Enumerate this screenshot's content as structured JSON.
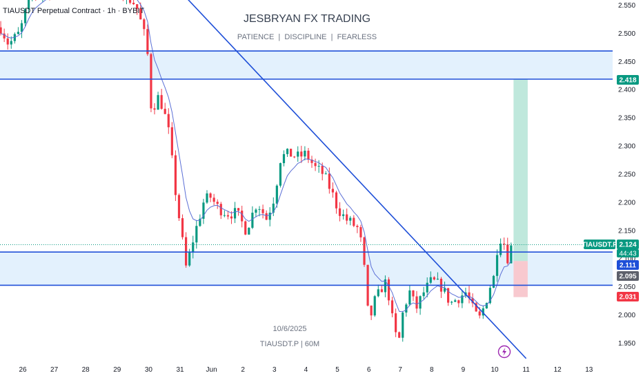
{
  "header": {
    "symbol_title": "TIAUSDT Perpetual Contract · 1h · BYBIT",
    "watermark_title": "JESBRYAN FX TRADING",
    "watermark_tagline": "PATIENCE  |  DISCIPLINE  |  FEARLESS",
    "footer_date": "10/6/2025",
    "footer_symbol": "TIAUSDT.P | 60M"
  },
  "colors": {
    "up": "#089981",
    "down": "#f23645",
    "ma": "#5b6fd6",
    "level_line": "#1e4fd8",
    "zone_fill": "#e3f1fd",
    "target_fill": "#bfe8dc",
    "stop_fill": "#f8c9cf",
    "dotted": "#089981"
  },
  "chart_data": {
    "type": "candlestick",
    "title": "TIAUSDT Perpetual Contract · 1h · BYBIT",
    "ylim": [
      1.92,
      2.56
    ],
    "y_ticks": [
      "2.550",
      "2.500",
      "2.450",
      "2.400",
      "2.350",
      "2.300",
      "2.250",
      "2.200",
      "2.150",
      "2.100",
      "2.050",
      "2.000",
      "1.950"
    ],
    "x_ticks": [
      {
        "label": "26",
        "day": 0
      },
      {
        "label": "27",
        "day": 1
      },
      {
        "label": "28",
        "day": 2
      },
      {
        "label": "29",
        "day": 3
      },
      {
        "label": "30",
        "day": 4
      },
      {
        "label": "31",
        "day": 5
      },
      {
        "label": "Jun",
        "day": 6
      },
      {
        "label": "2",
        "day": 7
      },
      {
        "label": "3",
        "day": 8
      },
      {
        "label": "4",
        "day": 9
      },
      {
        "label": "5",
        "day": 10
      },
      {
        "label": "6",
        "day": 11
      },
      {
        "label": "7",
        "day": 12
      },
      {
        "label": "8",
        "day": 13
      },
      {
        "label": "9",
        "day": 14
      },
      {
        "label": "10",
        "day": 15
      },
      {
        "label": "11",
        "day": 16
      },
      {
        "label": "12",
        "day": 17
      },
      {
        "label": "13",
        "day": 18
      }
    ],
    "path": [
      [
        -0.7,
        2.51
      ],
      [
        -0.45,
        2.48
      ],
      [
        -0.1,
        2.5
      ],
      [
        0.25,
        2.57
      ],
      [
        0.6,
        2.57
      ],
      [
        1.2,
        2.58
      ],
      [
        2.0,
        2.58
      ],
      [
        2.6,
        2.59
      ],
      [
        3.2,
        2.57
      ],
      [
        3.6,
        2.55
      ],
      [
        3.85,
        2.5
      ],
      [
        4.0,
        2.45
      ],
      [
        4.1,
        2.35
      ],
      [
        4.25,
        2.39
      ],
      [
        4.45,
        2.37
      ],
      [
        4.65,
        2.32
      ],
      [
        4.85,
        2.22
      ],
      [
        5.05,
        2.14
      ],
      [
        5.2,
        2.08
      ],
      [
        5.35,
        2.12
      ],
      [
        5.55,
        2.16
      ],
      [
        5.75,
        2.2
      ],
      [
        5.95,
        2.21
      ],
      [
        6.2,
        2.19
      ],
      [
        6.5,
        2.18
      ],
      [
        6.8,
        2.18
      ],
      [
        7.1,
        2.15
      ],
      [
        7.45,
        2.2
      ],
      [
        7.75,
        2.17
      ],
      [
        8.0,
        2.21
      ],
      [
        8.2,
        2.28
      ],
      [
        8.5,
        2.285
      ],
      [
        8.75,
        2.28
      ],
      [
        9.0,
        2.285
      ],
      [
        9.3,
        2.26
      ],
      [
        9.55,
        2.25
      ],
      [
        9.8,
        2.22
      ],
      [
        10.0,
        2.19
      ],
      [
        10.25,
        2.17
      ],
      [
        10.5,
        2.16
      ],
      [
        10.7,
        2.15
      ],
      [
        10.9,
        2.06
      ],
      [
        11.0,
        1.98
      ],
      [
        11.15,
        2.02
      ],
      [
        11.35,
        2.04
      ],
      [
        11.5,
        2.06
      ],
      [
        11.65,
        2.03
      ],
      [
        11.8,
        1.97
      ],
      [
        11.95,
        1.95
      ],
      [
        12.1,
        2.01
      ],
      [
        12.3,
        2.04
      ],
      [
        12.5,
        2.01
      ],
      [
        12.75,
        2.04
      ],
      [
        13.0,
        2.06
      ],
      [
        13.3,
        2.05
      ],
      [
        13.6,
        2.02
      ],
      [
        13.85,
        2.03
      ],
      [
        14.1,
        2.04
      ],
      [
        14.3,
        2.01
      ],
      [
        14.5,
        1.99
      ],
      [
        14.7,
        2.02
      ],
      [
        14.85,
        2.05
      ],
      [
        15.0,
        2.07
      ],
      [
        15.1,
        2.13
      ],
      [
        15.25,
        2.14
      ],
      [
        15.4,
        2.1
      ],
      [
        15.55,
        2.124
      ]
    ],
    "horizontal_levels": [
      {
        "price": 2.468
      },
      {
        "price": 2.418
      },
      {
        "price": 2.111
      },
      {
        "price": 2.052
      }
    ],
    "zones": [
      {
        "from": 2.418,
        "to": 2.468
      },
      {
        "from": 2.052,
        "to": 2.111
      }
    ],
    "trendlines": [
      {
        "from": [
          4.4,
          2.61
        ],
        "to": [
          16.0,
          1.922
        ]
      }
    ],
    "position_box": {
      "x_start": 15.6,
      "x_end": 16.05,
      "entry": 2.095,
      "target": 2.418,
      "stop": 2.031
    },
    "current_price": 2.124,
    "price_labels": [
      {
        "text": "2.418",
        "price": 2.418,
        "kind": "green"
      },
      {
        "text": "TIAUSDT.P",
        "price": 2.124,
        "kind": "green-tag"
      },
      {
        "text": "2.124",
        "price": 2.124,
        "kind": "green"
      },
      {
        "text": "44:43",
        "price": 2.11,
        "kind": "green-sub"
      },
      {
        "text": "2.111",
        "price": 2.111,
        "kind": "blue"
      },
      {
        "text": "2.095",
        "price": 2.095,
        "kind": "gray"
      },
      {
        "text": "2.031",
        "price": 2.031,
        "kind": "red"
      }
    ]
  }
}
